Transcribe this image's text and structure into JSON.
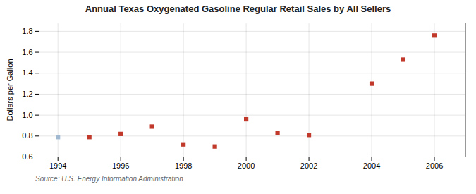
{
  "chart_data": {
    "type": "scatter",
    "title": "Annual Texas Oxygenated Gasoline Regular Retail Sales by All Sellers",
    "ylabel": "Dollars per Gallon",
    "source": "Source: U.S. Energy Information Administration",
    "x": [
      1994,
      1995,
      1996,
      1997,
      1998,
      1999,
      2000,
      2001,
      2002,
      2004,
      2005,
      2006
    ],
    "values": [
      0.79,
      0.79,
      0.82,
      0.89,
      0.72,
      0.7,
      0.96,
      0.83,
      0.81,
      1.3,
      1.53,
      1.76
    ],
    "colors": [
      "#a0b8d0",
      "#c0392b",
      "#c0392b",
      "#c0392b",
      "#c0392b",
      "#c0392b",
      "#c0392b",
      "#c0392b",
      "#c0392b",
      "#c0392b",
      "#c0392b",
      "#c0392b"
    ],
    "marker": "square",
    "xlim": [
      1993.4,
      2007.0
    ],
    "xticks": [
      1994,
      1996,
      1998,
      2000,
      2002,
      2004,
      2006
    ],
    "ylim": [
      0.6,
      1.88
    ],
    "yticks": [
      0.6,
      0.8,
      {
        "value": 1.0,
        "label": "1.0"
      },
      1.2,
      1.4,
      1.6,
      1.8
    ],
    "grid": true
  }
}
